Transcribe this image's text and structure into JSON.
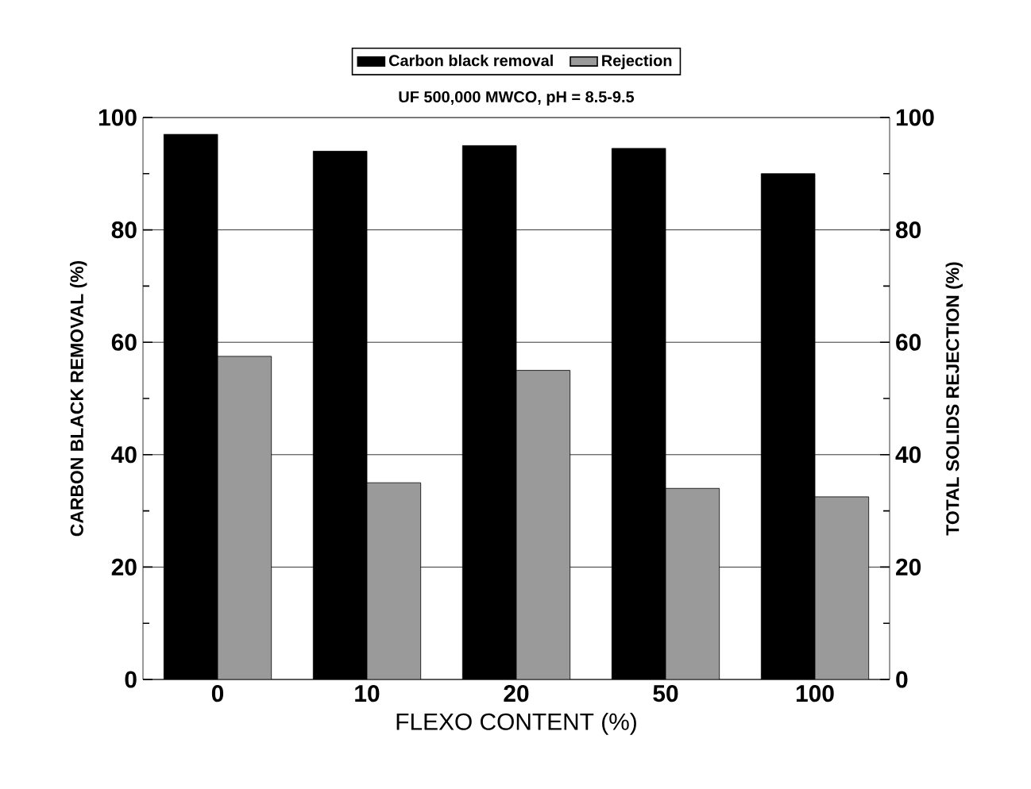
{
  "chart_data": {
    "type": "bar",
    "title": "UF 500,000 MWCO, pH = 8.5-9.5",
    "xlabel": "FLEXO CONTENT  (%)",
    "ylabel": "CARBON BLACK REMOVAL  (%)",
    "y2label": "TOTAL SOLIDS REJECTION  (%)",
    "categories": [
      "0",
      "10",
      "20",
      "50",
      "100"
    ],
    "series": [
      {
        "name": "Carbon black removal",
        "color": "#000000",
        "values": [
          97,
          94,
          95,
          94.5,
          90
        ]
      },
      {
        "name": "Rejection",
        "color": "#9a9a9a",
        "axis": "y2",
        "values": [
          57.5,
          35,
          55,
          34,
          32.5
        ]
      }
    ],
    "ylim": [
      0,
      100
    ],
    "yticks": [
      0,
      20,
      40,
      60,
      80,
      100
    ],
    "y2lim": [
      0,
      100
    ],
    "y2ticks": [
      0,
      20,
      40,
      60,
      80,
      100
    ],
    "grid": "y",
    "legend": "top"
  }
}
